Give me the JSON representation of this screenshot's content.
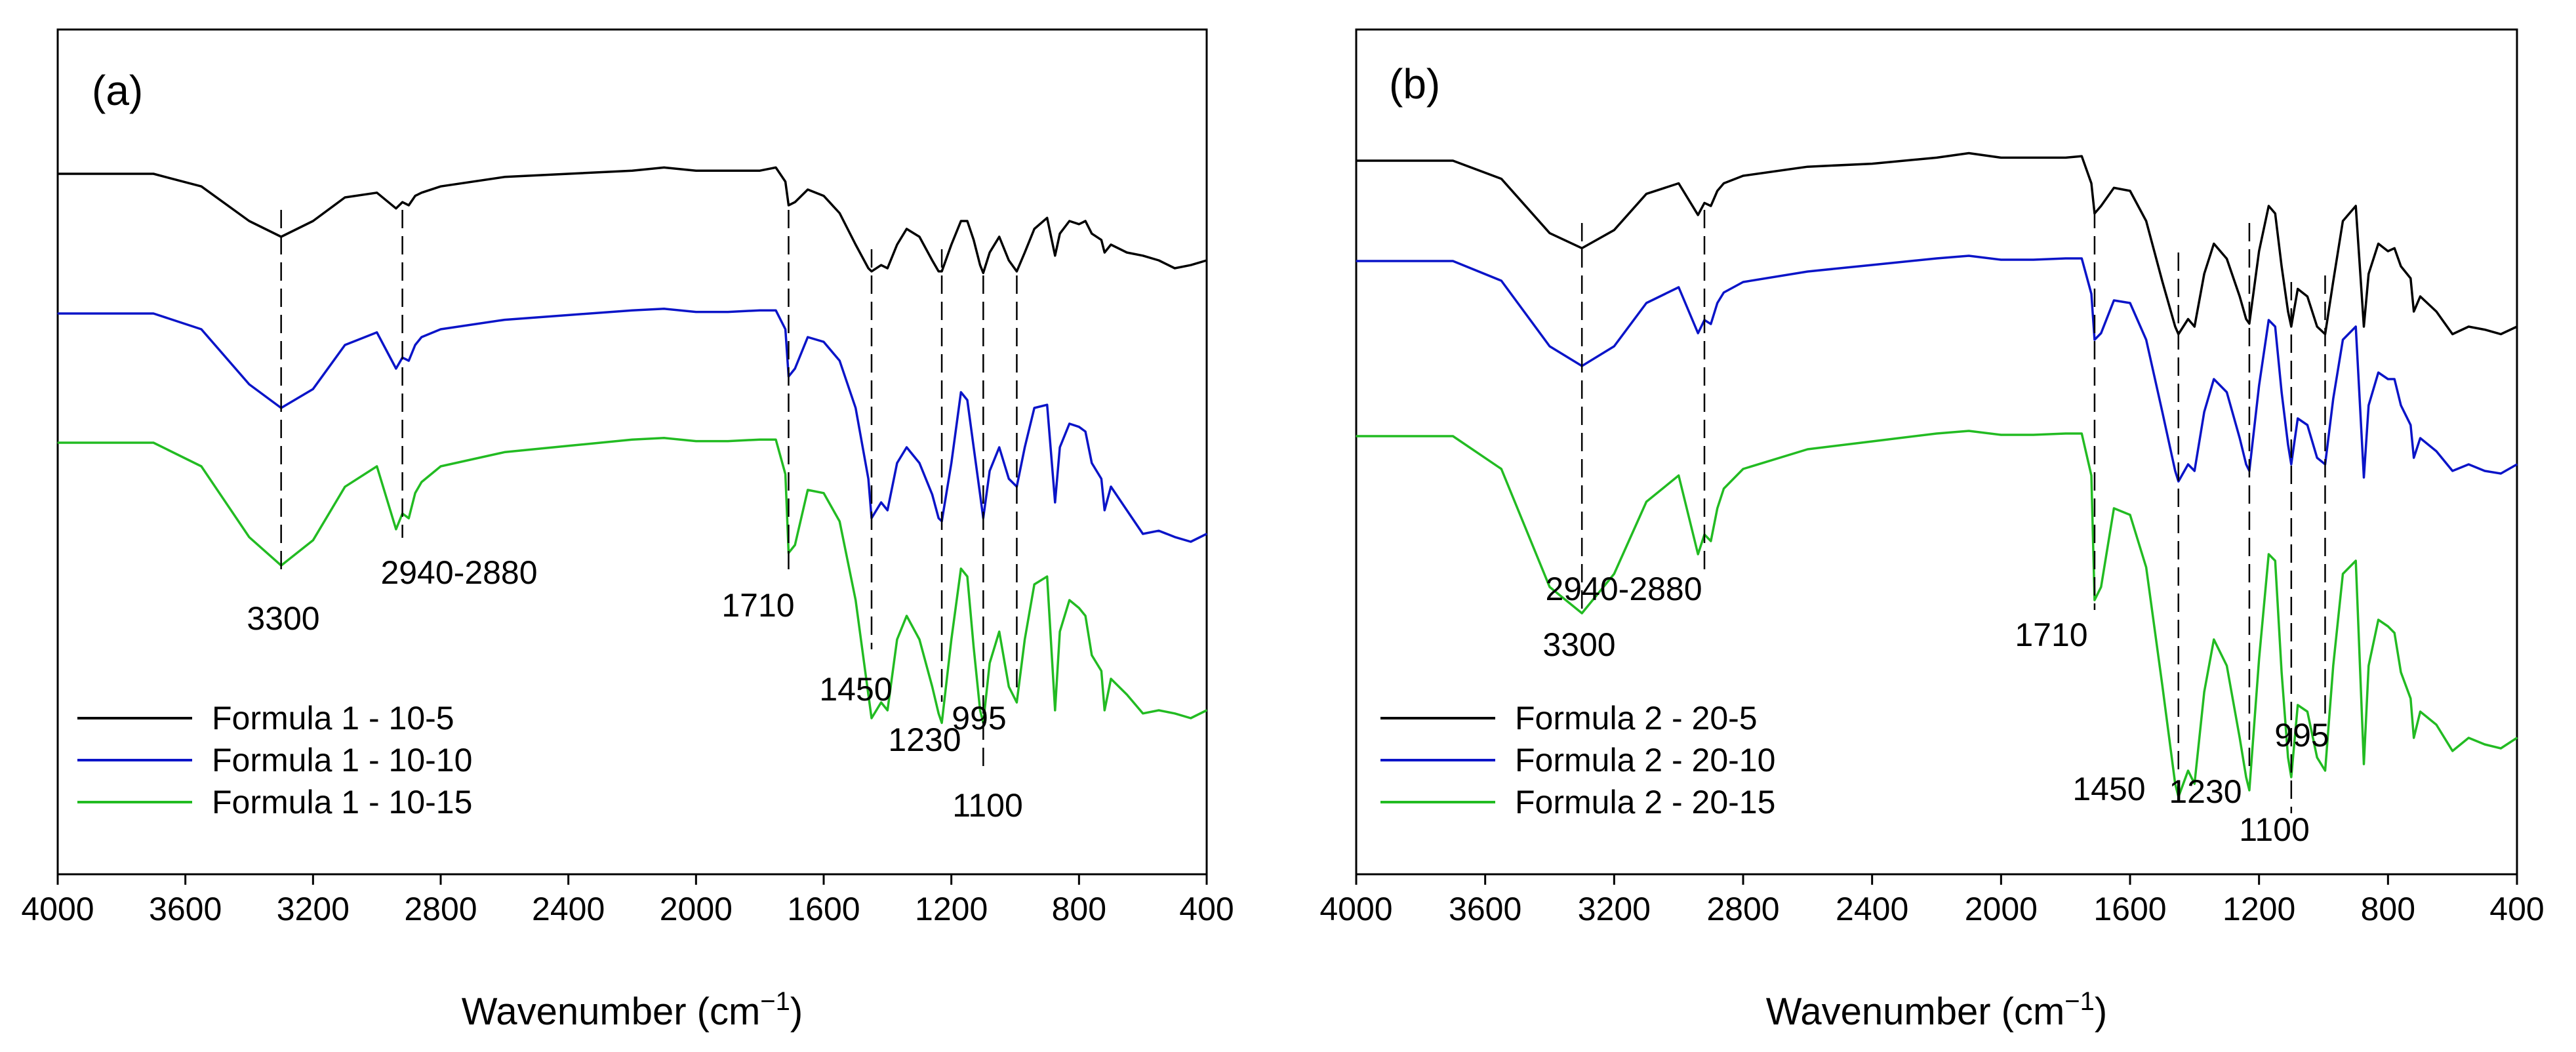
{
  "figure": {
    "panels": [
      {
        "panel_label": "(a)",
        "xlabel": "Wavenumber (cm",
        "xlabel_sup": "−1",
        "xlabel_close": ")",
        "ticks": [
          "4000",
          "3600",
          "3200",
          "2800",
          "2400",
          "2000",
          "1600",
          "1200",
          "800",
          "400"
        ],
        "annotations": [
          "3300",
          "2940-2880",
          "1710",
          "1450",
          "1230",
          "1100",
          "995"
        ],
        "legend": [
          "Formula 1 - 10-5",
          "Formula 1 - 10-10",
          "Formula 1 - 10-15"
        ]
      },
      {
        "panel_label": "(b)",
        "xlabel": "Wavenumber (cm",
        "xlabel_sup": "−1",
        "xlabel_close": ")",
        "ticks": [
          "4000",
          "3600",
          "3200",
          "2800",
          "2400",
          "2000",
          "1600",
          "1200",
          "800",
          "400"
        ],
        "annotations": [
          "3300",
          "2940-2880",
          "1710",
          "1450",
          "1230",
          "1100",
          "995"
        ],
        "legend": [
          "Formula 2 - 20-5",
          "Formula 2 - 20-10",
          "Formula 2 - 20-15"
        ]
      }
    ]
  },
  "chart_data": [
    {
      "type": "line",
      "panel": "(a)",
      "xlabel": "Wavenumber (cm−1)",
      "ylabel": "",
      "xlim": [
        4000,
        400
      ],
      "x_reversed": true,
      "yticks_shown": false,
      "grid": false,
      "legend_position": "bottom-left",
      "x": [
        4000,
        3700,
        3550,
        3400,
        3300,
        3200,
        3100,
        3000,
        2940,
        2920,
        2900,
        2880,
        2860,
        2800,
        2600,
        2400,
        2200,
        2100,
        2000,
        1900,
        1800,
        1750,
        1720,
        1710,
        1690,
        1650,
        1600,
        1550,
        1500,
        1460,
        1450,
        1420,
        1400,
        1370,
        1340,
        1300,
        1260,
        1240,
        1230,
        1200,
        1170,
        1150,
        1130,
        1110,
        1100,
        1080,
        1050,
        1020,
        995,
        970,
        940,
        900,
        875,
        860,
        830,
        800,
        780,
        760,
        730,
        720,
        700,
        650,
        600,
        550,
        500,
        450,
        400
      ],
      "series": [
        {
          "name": "Formula 1 - 10-5",
          "color": "#000000",
          "values": [
            0,
            0,
            -0.08,
            -0.3,
            -0.4,
            -0.3,
            -0.15,
            -0.12,
            -0.22,
            -0.18,
            -0.2,
            -0.14,
            -0.12,
            -0.08,
            -0.02,
            0,
            0.02,
            0.04,
            0.02,
            0.02,
            0.02,
            0.04,
            -0.05,
            -0.2,
            -0.18,
            -0.1,
            -0.14,
            -0.25,
            -0.45,
            -0.6,
            -0.62,
            -0.58,
            -0.6,
            -0.45,
            -0.35,
            -0.4,
            -0.55,
            -0.62,
            -0.62,
            -0.45,
            -0.3,
            -0.3,
            -0.42,
            -0.58,
            -0.63,
            -0.5,
            -0.4,
            -0.55,
            -0.62,
            -0.5,
            -0.35,
            -0.28,
            -0.52,
            -0.38,
            -0.3,
            -0.32,
            -0.3,
            -0.38,
            -0.42,
            -0.5,
            -0.45,
            -0.5,
            -0.52,
            -0.55,
            -0.6,
            -0.58,
            -0.55
          ]
        },
        {
          "name": "Formula 1 - 10-10",
          "color": "#0a14c8",
          "values": [
            0,
            0,
            -0.1,
            -0.45,
            -0.6,
            -0.48,
            -0.2,
            -0.12,
            -0.35,
            -0.28,
            -0.3,
            -0.2,
            -0.15,
            -0.1,
            -0.04,
            -0.01,
            0.02,
            0.03,
            0.01,
            0.01,
            0.02,
            0.02,
            -0.1,
            -0.4,
            -0.35,
            -0.15,
            -0.18,
            -0.3,
            -0.6,
            -1.05,
            -1.3,
            -1.2,
            -1.25,
            -0.95,
            -0.85,
            -0.95,
            -1.15,
            -1.3,
            -1.32,
            -0.95,
            -0.5,
            -0.55,
            -0.85,
            -1.15,
            -1.3,
            -1.0,
            -0.85,
            -1.05,
            -1.1,
            -0.85,
            -0.6,
            -0.58,
            -1.2,
            -0.85,
            -0.7,
            -0.72,
            -0.75,
            -0.95,
            -1.05,
            -1.25,
            -1.1,
            -1.25,
            -1.4,
            -1.38,
            -1.42,
            -1.45,
            -1.4
          ]
        },
        {
          "name": "Formula 1 - 10-15",
          "color": "#22bb22",
          "values": [
            0,
            0,
            -0.15,
            -0.6,
            -0.78,
            -0.62,
            -0.28,
            -0.15,
            -0.55,
            -0.45,
            -0.48,
            -0.32,
            -0.25,
            -0.15,
            -0.06,
            -0.02,
            0.02,
            0.03,
            0.01,
            0.01,
            0.02,
            0.02,
            -0.2,
            -0.7,
            -0.65,
            -0.3,
            -0.32,
            -0.5,
            -1.0,
            -1.6,
            -1.75,
            -1.65,
            -1.7,
            -1.25,
            -1.1,
            -1.25,
            -1.55,
            -1.72,
            -1.78,
            -1.25,
            -0.8,
            -0.85,
            -1.3,
            -1.7,
            -1.78,
            -1.4,
            -1.2,
            -1.55,
            -1.65,
            -1.25,
            -0.9,
            -0.85,
            -1.7,
            -1.2,
            -1.0,
            -1.05,
            -1.1,
            -1.35,
            -1.45,
            -1.7,
            -1.5,
            -1.6,
            -1.72,
            -1.7,
            -1.72,
            -1.75,
            -1.7
          ]
        }
      ]
    },
    {
      "type": "line",
      "panel": "(b)",
      "xlabel": "Wavenumber (cm−1)",
      "ylabel": "",
      "xlim": [
        4000,
        400
      ],
      "x_reversed": true,
      "yticks_shown": false,
      "grid": false,
      "legend_position": "bottom-left",
      "x": [
        4000,
        3700,
        3550,
        3400,
        3300,
        3200,
        3100,
        3000,
        2940,
        2920,
        2900,
        2880,
        2860,
        2800,
        2600,
        2400,
        2200,
        2100,
        2000,
        1900,
        1800,
        1750,
        1720,
        1710,
        1690,
        1650,
        1600,
        1550,
        1500,
        1460,
        1450,
        1420,
        1400,
        1370,
        1340,
        1300,
        1260,
        1240,
        1230,
        1200,
        1170,
        1150,
        1130,
        1110,
        1100,
        1080,
        1050,
        1020,
        995,
        970,
        940,
        900,
        875,
        860,
        830,
        800,
        780,
        760,
        730,
        720,
        700,
        650,
        600,
        550,
        500,
        450,
        400
      ],
      "series": [
        {
          "name": "Formula 2 - 20-5",
          "color": "#000000",
          "values": [
            0,
            0,
            -0.12,
            -0.48,
            -0.58,
            -0.46,
            -0.22,
            -0.15,
            -0.36,
            -0.28,
            -0.3,
            -0.2,
            -0.15,
            -0.1,
            -0.04,
            -0.02,
            0.02,
            0.05,
            0.02,
            0.02,
            0.02,
            0.03,
            -0.15,
            -0.35,
            -0.3,
            -0.18,
            -0.2,
            -0.4,
            -0.8,
            -1.1,
            -1.15,
            -1.05,
            -1.1,
            -0.75,
            -0.55,
            -0.65,
            -0.9,
            -1.05,
            -1.08,
            -0.6,
            -0.3,
            -0.35,
            -0.7,
            -1.0,
            -1.1,
            -0.85,
            -0.9,
            -1.1,
            -1.15,
            -0.8,
            -0.4,
            -0.3,
            -1.1,
            -0.75,
            -0.55,
            -0.6,
            -0.58,
            -0.7,
            -0.78,
            -1.0,
            -0.9,
            -1.0,
            -1.15,
            -1.1,
            -1.12,
            -1.15,
            -1.1
          ]
        },
        {
          "name": "Formula 2 - 20-10",
          "color": "#0a14c8",
          "values": [
            0,
            0,
            -0.15,
            -0.65,
            -0.8,
            -0.65,
            -0.32,
            -0.2,
            -0.55,
            -0.45,
            -0.48,
            -0.32,
            -0.24,
            -0.16,
            -0.08,
            -0.03,
            0.02,
            0.04,
            0.01,
            0.01,
            0.02,
            0.02,
            -0.25,
            -0.6,
            -0.55,
            -0.3,
            -0.32,
            -0.6,
            -1.15,
            -1.6,
            -1.68,
            -1.55,
            -1.6,
            -1.15,
            -0.9,
            -1.0,
            -1.35,
            -1.55,
            -1.6,
            -0.95,
            -0.45,
            -0.5,
            -1.0,
            -1.4,
            -1.55,
            -1.2,
            -1.25,
            -1.5,
            -1.55,
            -1.05,
            -0.6,
            -0.5,
            -1.65,
            -1.1,
            -0.85,
            -0.9,
            -0.9,
            -1.1,
            -1.25,
            -1.5,
            -1.35,
            -1.45,
            -1.6,
            -1.55,
            -1.6,
            -1.62,
            -1.55
          ]
        },
        {
          "name": "Formula 2 - 20-15",
          "color": "#22bb22",
          "values": [
            0,
            0,
            -0.25,
            -1.15,
            -1.35,
            -1.05,
            -0.5,
            -0.3,
            -0.9,
            -0.75,
            -0.8,
            -0.55,
            -0.4,
            -0.25,
            -0.1,
            -0.04,
            0.02,
            0.04,
            0.01,
            0.01,
            0.02,
            0.02,
            -0.3,
            -1.25,
            -1.15,
            -0.55,
            -0.6,
            -1.0,
            -1.9,
            -2.65,
            -2.75,
            -2.55,
            -2.65,
            -1.95,
            -1.55,
            -1.75,
            -2.3,
            -2.6,
            -2.7,
            -1.7,
            -0.9,
            -0.95,
            -1.8,
            -2.45,
            -2.6,
            -2.05,
            -2.1,
            -2.45,
            -2.55,
            -1.75,
            -1.05,
            -0.95,
            -2.5,
            -1.75,
            -1.4,
            -1.45,
            -1.5,
            -1.8,
            -2.0,
            -2.3,
            -2.1,
            -2.2,
            -2.4,
            -2.3,
            -2.35,
            -2.38,
            -2.3
          ]
        }
      ]
    }
  ]
}
